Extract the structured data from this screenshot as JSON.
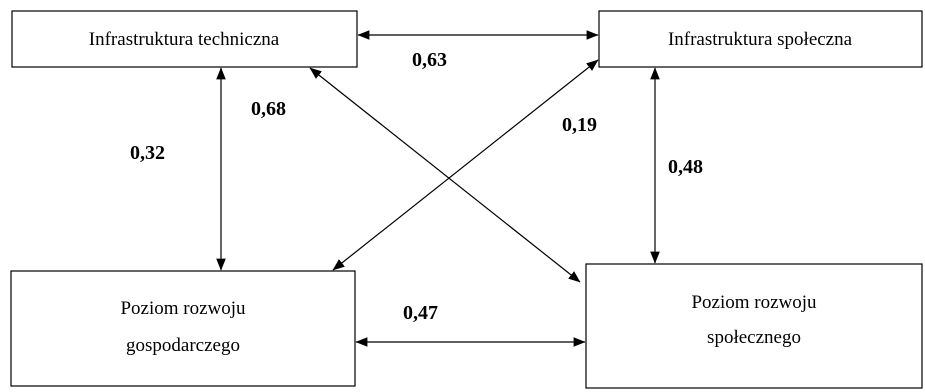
{
  "nodes": {
    "tech": {
      "lines": [
        "Infrastruktura techniczna"
      ]
    },
    "soc": {
      "lines": [
        "Infrastruktura społeczna"
      ]
    },
    "econ": {
      "lines": [
        "Poziom rozwoju",
        "gospodarczego"
      ]
    },
    "socdev": {
      "lines": [
        "Poziom rozwoju",
        "społecznego"
      ]
    }
  },
  "edges": {
    "tech_soc": {
      "label": "0,63"
    },
    "tech_econ": {
      "label": "0,32"
    },
    "tech_socdev": {
      "label": "0,68"
    },
    "soc_econ": {
      "label": "0,19"
    },
    "soc_socdev": {
      "label": "0,48"
    },
    "econ_socdev": {
      "label": "0,47"
    }
  }
}
